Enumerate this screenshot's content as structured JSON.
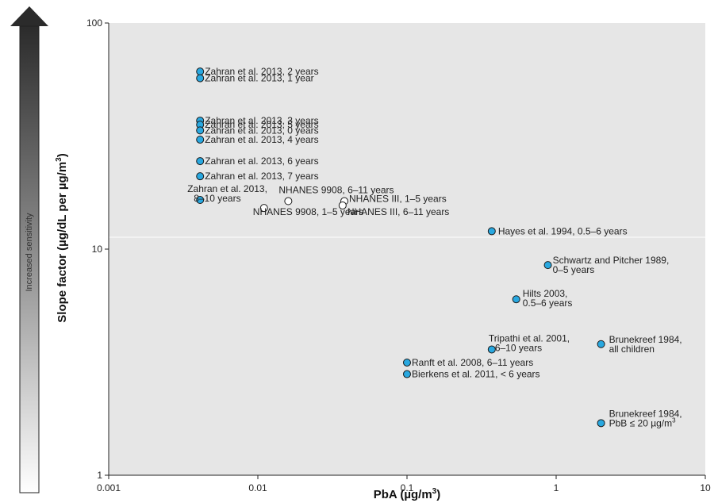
{
  "chart_data": {
    "type": "scatter",
    "title": "",
    "xlabel": "PbA (µg/m3)",
    "xlabel_main": "PbA (µg/m",
    "xlabel_sup": "3",
    "xlabel_end": ")",
    "ylabel": "Slope factor (µg/dL per µg/m3)",
    "ylabel_main": "Slope factor (µg/dL per µg/m",
    "ylabel_sup": "3",
    "ylabel_end": ")",
    "side_label": "Increased sensitivity",
    "x_scale": "log",
    "y_scale": "log",
    "xlim": [
      0.001,
      10
    ],
    "ylim": [
      1,
      100
    ],
    "x_ticks": [
      "0.001",
      "0.01",
      "0.1",
      "1",
      "10"
    ],
    "y_ticks": [
      "1",
      "10",
      "100"
    ],
    "grid": "horizontal at 10",
    "colors": {
      "filled": "#29a8e0",
      "open": "#ffffff",
      "plot_bg": "#e6e6e6",
      "arrow_top": "#2b2b2b"
    },
    "points": [
      {
        "x": 0.0041,
        "y": 61,
        "style": "filled",
        "label": [
          "Zahran et al. 2013, 2 years"
        ]
      },
      {
        "x": 0.0041,
        "y": 57,
        "style": "filled",
        "label": [
          "Zahran et al. 2013, 1 year"
        ]
      },
      {
        "x": 0.0041,
        "y": 37,
        "style": "filled",
        "label": [
          "Zahran et al. 2013, 3 years"
        ]
      },
      {
        "x": 0.0041,
        "y": 35.5,
        "style": "filled",
        "label": [
          "Zahran et al. 2013, 5 years"
        ]
      },
      {
        "x": 0.0041,
        "y": 33.5,
        "style": "filled",
        "label": [
          "Zahran et al. 2013, 0 years"
        ]
      },
      {
        "x": 0.0041,
        "y": 30.5,
        "style": "filled",
        "label": [
          "Zahran et al. 2013, 4 years"
        ]
      },
      {
        "x": 0.0041,
        "y": 24.5,
        "style": "filled",
        "label": [
          "Zahran et al. 2013, 6 years"
        ]
      },
      {
        "x": 0.0041,
        "y": 21,
        "style": "filled",
        "label": [
          "Zahran et al. 2013, 7 years"
        ]
      },
      {
        "x": 0.0041,
        "y": 16.5,
        "style": "filled",
        "label": [
          "Zahran et al. 2013,",
          "8–10 years"
        ]
      },
      {
        "x": 0.016,
        "y": 16.3,
        "style": "open",
        "label": [
          "NHANES 9908, 6–11 years"
        ]
      },
      {
        "x": 0.011,
        "y": 15.2,
        "style": "open",
        "label": [
          "NHANES 9908, 1–5 years"
        ]
      },
      {
        "x": 0.038,
        "y": 16.3,
        "style": "open",
        "label": [
          "NHANES III, 1–5 years"
        ]
      },
      {
        "x": 0.037,
        "y": 15.6,
        "style": "open",
        "label": [
          "NHANES III, 6–11 years"
        ]
      },
      {
        "x": 0.37,
        "y": 12,
        "style": "filled",
        "label": [
          "Hayes et al. 1994, 0.5–6 years"
        ]
      },
      {
        "x": 0.88,
        "y": 8.5,
        "style": "filled",
        "label": [
          "Schwartz and Pitcher 1989,",
          "0–5 years"
        ]
      },
      {
        "x": 0.54,
        "y": 6.0,
        "style": "filled",
        "label": [
          "Hilts 2003,",
          "0.5–6 years"
        ]
      },
      {
        "x": 0.37,
        "y": 3.6,
        "style": "filled",
        "label": [
          "Tripathi et al. 2001,",
          "6–10 years"
        ]
      },
      {
        "x": 2.0,
        "y": 3.8,
        "style": "filled",
        "label": [
          "Brunekreef 1984,",
          "all children"
        ]
      },
      {
        "x": 0.1,
        "y": 3.15,
        "style": "filled",
        "label": [
          "Ranft et al. 2008, 6–11 years"
        ]
      },
      {
        "x": 0.1,
        "y": 2.8,
        "style": "filled",
        "label": [
          "Bierkens et al. 2011, < 6 years"
        ]
      },
      {
        "x": 2.0,
        "y": 1.7,
        "style": "filled",
        "label": [
          "Brunekreef 1984,",
          "PbB ≤ 20 µg/m3"
        ]
      }
    ]
  }
}
